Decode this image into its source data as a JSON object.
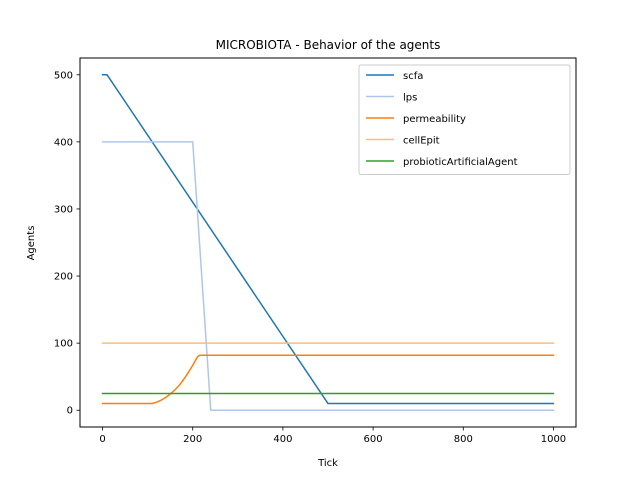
{
  "chart_data": {
    "type": "line",
    "title": "MICROBIOTA - Behavior of the agents",
    "xlabel": "Tick",
    "ylabel": "Agents",
    "xlim": [
      -50,
      1050
    ],
    "ylim": [
      -25,
      525
    ],
    "xticks": [
      0,
      200,
      400,
      600,
      800,
      1000
    ],
    "yticks": [
      0,
      100,
      200,
      300,
      400,
      500
    ],
    "grid": false,
    "legend_position": "top-right",
    "series": [
      {
        "name": "scfa",
        "color": "#1f77b4",
        "points": [
          [
            0,
            500
          ],
          [
            10,
            500
          ],
          [
            500,
            10
          ],
          [
            1000,
            10
          ]
        ]
      },
      {
        "name": "lps",
        "color": "#aec7e8",
        "points": [
          [
            0,
            400
          ],
          [
            200,
            400
          ],
          [
            240,
            0
          ],
          [
            1000,
            0
          ]
        ]
      },
      {
        "name": "permeability",
        "color": "#ff7f0e",
        "points": [
          [
            0,
            10
          ],
          [
            110,
            10
          ],
          [
            120,
            12
          ],
          [
            130,
            15
          ],
          [
            140,
            19
          ],
          [
            150,
            24
          ],
          [
            160,
            30
          ],
          [
            170,
            37
          ],
          [
            180,
            46
          ],
          [
            190,
            56
          ],
          [
            200,
            67
          ],
          [
            210,
            79
          ],
          [
            215,
            82
          ],
          [
            1000,
            82
          ]
        ]
      },
      {
        "name": "cellEpit",
        "color": "#ffbb78",
        "points": [
          [
            0,
            100
          ],
          [
            1000,
            100
          ]
        ]
      },
      {
        "name": "probioticArtificialAgent",
        "color": "#2ca02c",
        "points": [
          [
            0,
            25
          ],
          [
            1000,
            25
          ]
        ]
      }
    ]
  }
}
